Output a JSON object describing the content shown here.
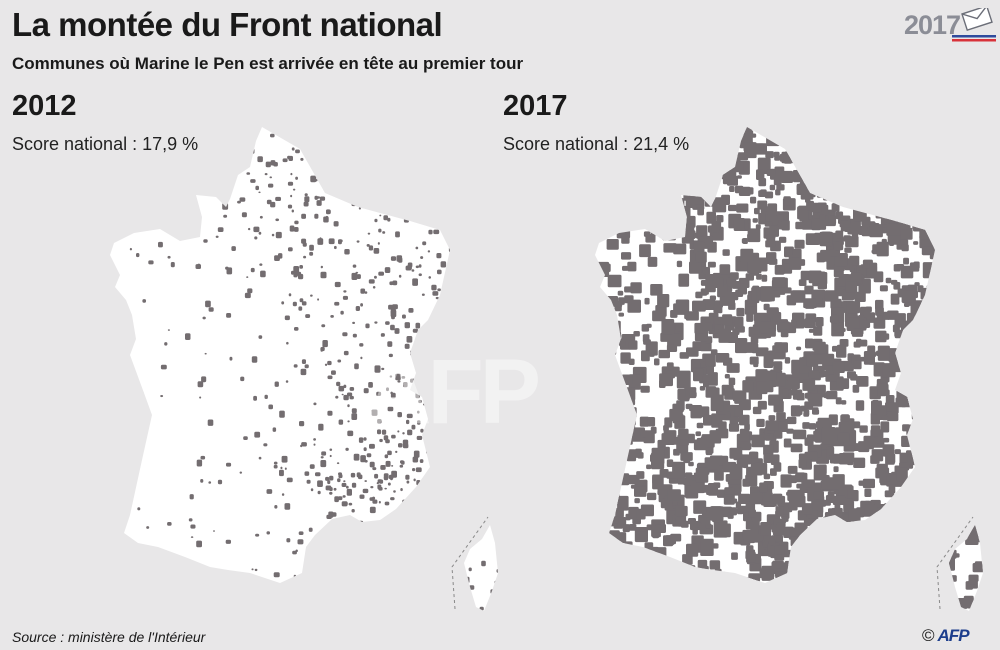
{
  "header": {
    "title": "La montée du Front national",
    "subtitle": "Communes où Marine le Pen est arrivée en tête au premier tour"
  },
  "badge": {
    "year": "2017"
  },
  "maps": [
    {
      "year": "2012",
      "score": "Score national : 17,9 %",
      "density": 0.13
    },
    {
      "year": "2017",
      "score": "Score national : 21,4 %",
      "density": 0.72
    }
  ],
  "colors": {
    "background": "#e8e7e8",
    "land": "#ffffff",
    "highlight": "#736d70"
  },
  "footer": {
    "source": "Source : ministère de l'Intérieur",
    "copyright": "©",
    "agency": "AFP"
  },
  "watermark": "AFP"
}
